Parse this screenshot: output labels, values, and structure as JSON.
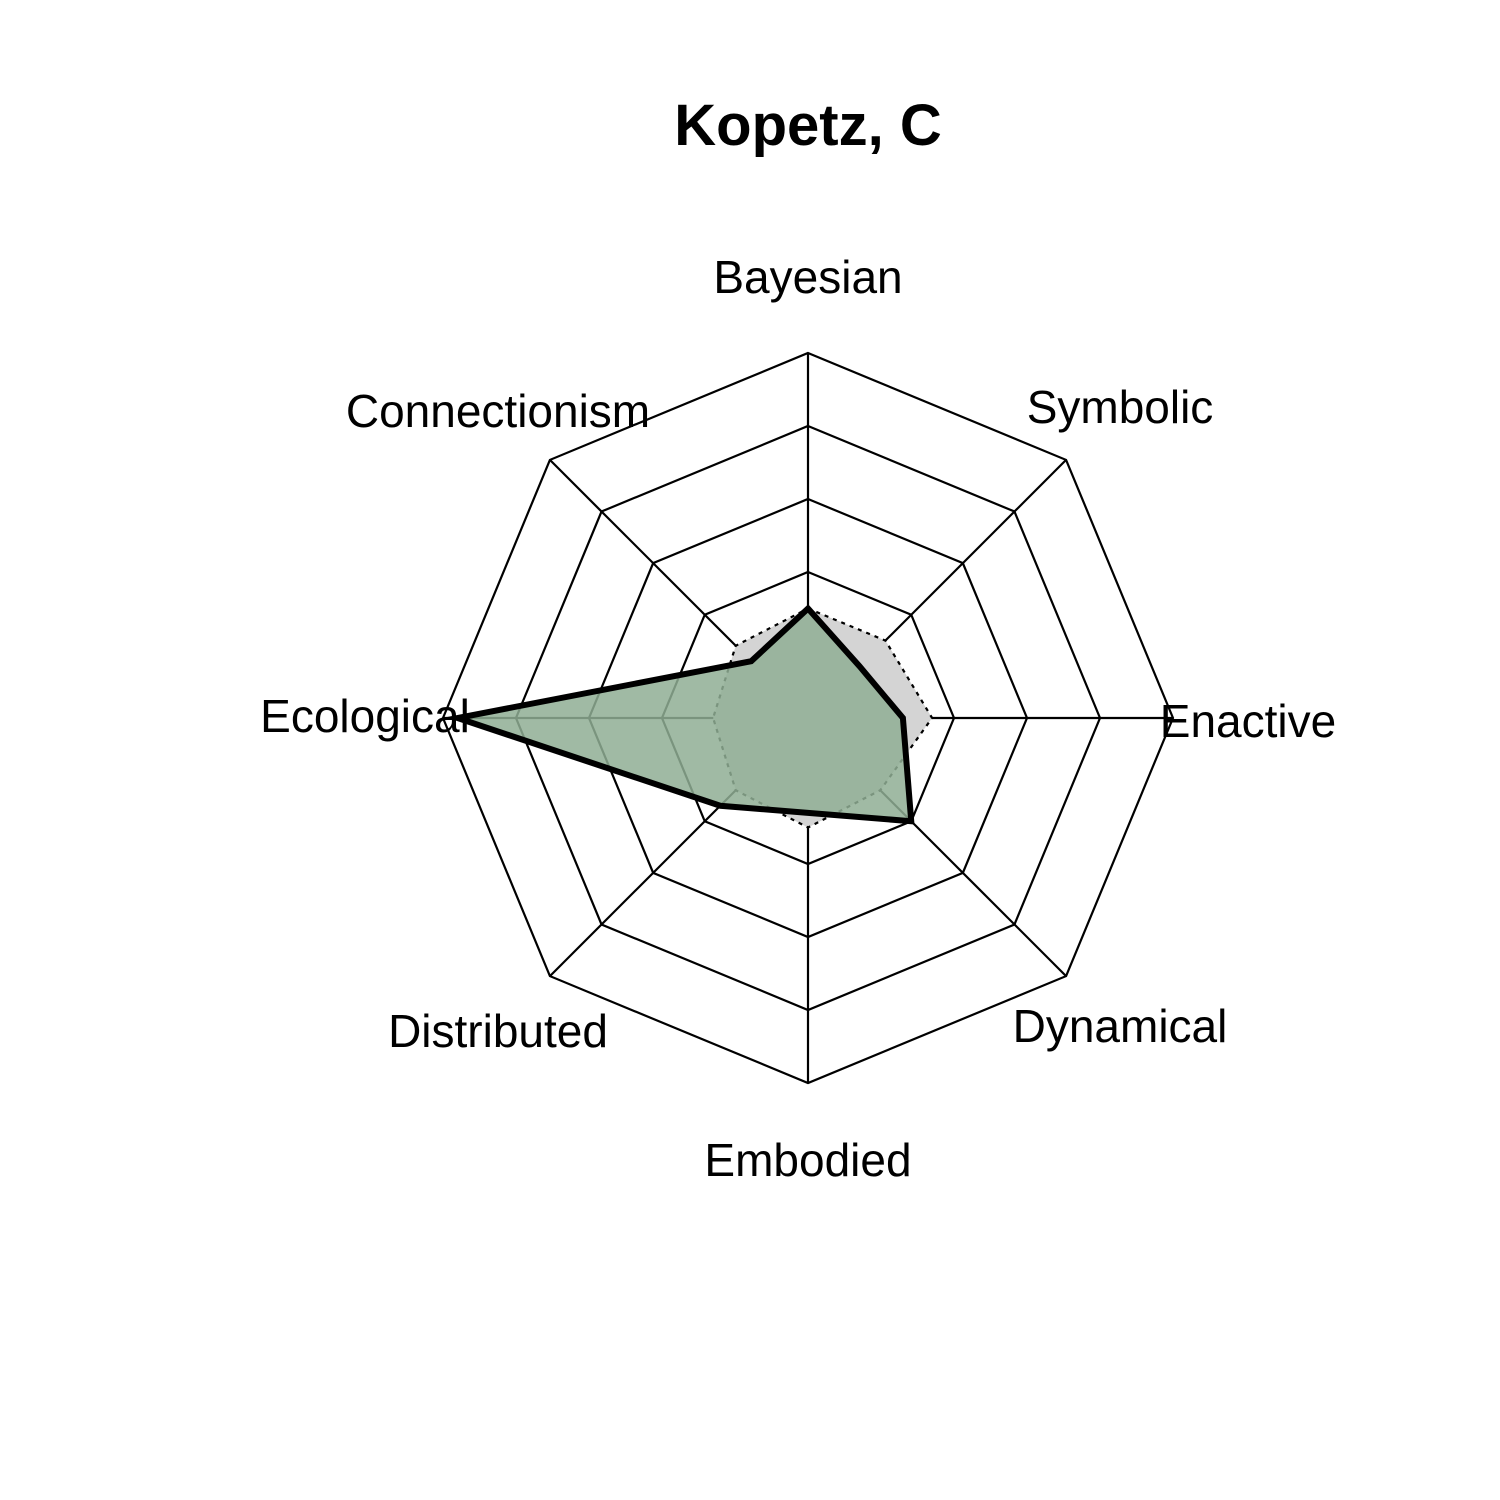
{
  "chart_data": {
    "type": "radar",
    "title": "Kopetz, C",
    "axes": [
      "Bayesian",
      "Symbolic",
      "Enactive",
      "Dynamical",
      "Embodied",
      "Distributed",
      "Ecological",
      "Connectionism"
    ],
    "scale": {
      "min": 0,
      "max": 5,
      "rings": 5
    },
    "grid": true,
    "series": [
      {
        "values": [
          1.5,
          1.0,
          1.3,
          2.0,
          1.3,
          1.7,
          4.8,
          1.1
        ],
        "fill": "#8fae94",
        "fill_opacity": 0.85,
        "stroke": "#000000",
        "line_style": "solid"
      },
      {
        "values": [
          1.5,
          1.5,
          1.7,
          1.4,
          1.5,
          1.4,
          1.3,
          1.4
        ],
        "fill": "#d4d4d4",
        "stroke": "#000000",
        "line_style": "dotted"
      }
    ]
  }
}
